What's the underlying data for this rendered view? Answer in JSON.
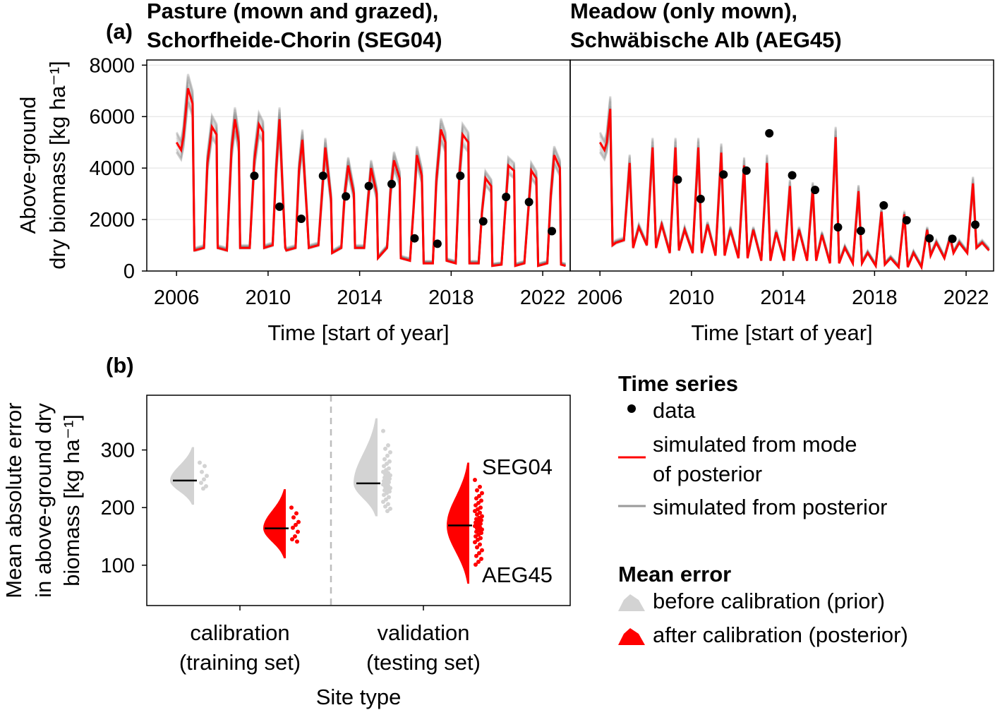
{
  "chart_data": [
    {
      "type": "line",
      "panel_label": "(a)",
      "title_line1": "Pasture (mown and grazed),",
      "title_line2": "Schorfheide-Chorin (SEG04)",
      "xlabel": "Time [start of year]",
      "ylabel_line1": "Above-ground",
      "ylabel_line2": "dry biomass [kg ha⁻¹]",
      "xlim": [
        2004.7,
        2023.2
      ],
      "ylim": [
        0,
        8200
      ],
      "xticks": [
        2006,
        2010,
        2014,
        2018,
        2022
      ],
      "yticks": [
        0,
        2000,
        4000,
        6000,
        8000
      ],
      "grid": true,
      "series": [
        {
          "name": "data",
          "type": "scatter",
          "x": [
            2009.4,
            2010.5,
            2011.45,
            2012.4,
            2013.4,
            2014.4,
            2015.4,
            2016.4,
            2017.4,
            2018.4,
            2019.4,
            2020.4,
            2021.4,
            2022.4
          ],
          "y": [
            3700,
            2500,
            2030,
            3700,
            2900,
            3300,
            3380,
            1270,
            1060,
            3700,
            1930,
            2880,
            2680,
            1550
          ]
        },
        {
          "name": "simulated from mode of posterior",
          "type": "line",
          "x": [
            2006.0,
            2006.2,
            2006.3,
            2006.5,
            2006.7,
            2006.78,
            2006.8,
            2007.2,
            2007.35,
            2007.55,
            2007.75,
            2007.8,
            2008.2,
            2008.4,
            2008.55,
            2008.72,
            2008.78,
            2009.2,
            2009.4,
            2009.6,
            2009.78,
            2009.83,
            2010.2,
            2010.35,
            2010.5,
            2010.75,
            2010.8,
            2011.2,
            2011.35,
            2011.5,
            2011.7,
            2011.78,
            2012.2,
            2012.38,
            2012.5,
            2012.75,
            2012.8,
            2013.2,
            2013.35,
            2013.5,
            2013.75,
            2013.8,
            2014.2,
            2014.35,
            2014.5,
            2014.75,
            2014.8,
            2015.2,
            2015.35,
            2015.5,
            2015.75,
            2015.8,
            2016.2,
            2016.35,
            2016.5,
            2016.72,
            2016.8,
            2017.2,
            2017.35,
            2017.55,
            2017.75,
            2017.8,
            2018.2,
            2018.35,
            2018.5,
            2018.75,
            2018.8,
            2019.2,
            2019.35,
            2019.5,
            2019.75,
            2019.8,
            2020.2,
            2020.35,
            2020.5,
            2020.75,
            2020.8,
            2021.2,
            2021.35,
            2021.5,
            2021.72,
            2021.8,
            2022.2,
            2022.35,
            2022.5,
            2022.75,
            2022.8,
            2023.0
          ],
          "y": [
            5000,
            4700,
            5200,
            7100,
            6500,
            800,
            800,
            900,
            4200,
            5600,
            5300,
            900,
            800,
            4700,
            5900,
            5000,
            900,
            900,
            4300,
            5700,
            5400,
            900,
            1000,
            3900,
            5900,
            900,
            800,
            900,
            3900,
            5100,
            2200,
            900,
            1000,
            3300,
            4800,
            2800,
            700,
            900,
            3000,
            4100,
            3000,
            900,
            900,
            2600,
            4000,
            3000,
            500,
            900,
            3100,
            4300,
            3600,
            500,
            400,
            2300,
            4500,
            3700,
            300,
            300,
            3500,
            5500,
            5000,
            400,
            300,
            3600,
            5300,
            5000,
            300,
            300,
            2300,
            3600,
            3300,
            200,
            250,
            2200,
            4100,
            3900,
            200,
            300,
            2100,
            3900,
            3600,
            200,
            300,
            2900,
            4500,
            4000,
            250,
            200
          ]
        },
        {
          "name": "simulated from posterior",
          "type": "line_ensemble"
        }
      ]
    },
    {
      "type": "line",
      "title_line1": "Meadow (only mown),",
      "title_line2": "Schwäbische Alb (AEG45)",
      "xlabel": "Time [start of year]",
      "xlim": [
        2004.7,
        2023.2
      ],
      "ylim": [
        0,
        8200
      ],
      "xticks": [
        2006,
        2010,
        2014,
        2018,
        2022
      ],
      "grid": true,
      "series": [
        {
          "name": "data",
          "type": "scatter",
          "x": [
            2009.4,
            2010.4,
            2011.4,
            2012.4,
            2013.4,
            2014.4,
            2015.4,
            2016.4,
            2017.4,
            2018.4,
            2019.4,
            2020.4,
            2021.4,
            2022.4
          ],
          "y": [
            3550,
            2800,
            3750,
            3900,
            5350,
            3720,
            3150,
            1700,
            1560,
            2550,
            1970,
            1270,
            1250,
            1800
          ]
        },
        {
          "name": "simulated from mode of posterior",
          "type": "line",
          "x": [
            2006.0,
            2006.2,
            2006.3,
            2006.45,
            2006.55,
            2006.7,
            2007.05,
            2007.3,
            2007.45,
            2007.7,
            2008.05,
            2008.3,
            2008.45,
            2008.7,
            2009.05,
            2009.3,
            2009.45,
            2009.7,
            2010.05,
            2010.3,
            2010.45,
            2010.7,
            2011.05,
            2011.3,
            2011.45,
            2011.7,
            2012.05,
            2012.3,
            2012.45,
            2012.7,
            2013.05,
            2013.3,
            2013.45,
            2013.7,
            2014.05,
            2014.3,
            2014.45,
            2014.7,
            2015.05,
            2015.3,
            2015.45,
            2015.7,
            2016.05,
            2016.3,
            2016.45,
            2016.7,
            2017.05,
            2017.3,
            2017.45,
            2017.7,
            2018.05,
            2018.3,
            2018.45,
            2018.7,
            2019.05,
            2019.3,
            2019.45,
            2019.7,
            2020.05,
            2020.3,
            2020.45,
            2020.7,
            2021.05,
            2021.3,
            2021.45,
            2021.7,
            2022.05,
            2022.3,
            2022.45,
            2022.7,
            2023.0
          ],
          "y": [
            5000,
            4700,
            5000,
            6300,
            1000,
            1100,
            1200,
            4200,
            900,
            1700,
            1000,
            4800,
            900,
            1800,
            700,
            4800,
            800,
            1600,
            700,
            4800,
            700,
            1800,
            600,
            4600,
            600,
            1600,
            500,
            4100,
            500,
            1600,
            400,
            4200,
            400,
            1500,
            400,
            3300,
            400,
            1600,
            400,
            3200,
            400,
            1400,
            300,
            5200,
            300,
            900,
            300,
            3100,
            300,
            700,
            200,
            2300,
            250,
            500,
            150,
            2200,
            150,
            700,
            150,
            1600,
            600,
            1100,
            500,
            1300,
            700,
            1100,
            700,
            3400,
            900,
            1100,
            800
          ]
        },
        {
          "name": "simulated from posterior",
          "type": "line_ensemble"
        }
      ]
    },
    {
      "type": "half-violin",
      "panel_label": "(b)",
      "xlabel": "Site type",
      "ylabel_line1": "Mean absolute error",
      "ylabel_line2": "in above-ground dry",
      "ylabel_line3": "biomass [kg ha⁻¹]",
      "ylim": [
        30,
        395
      ],
      "yticks": [
        100,
        200,
        300
      ],
      "categories": [
        {
          "line1": "calibration",
          "line2": "(training set)"
        },
        {
          "line1": "validation",
          "line2": "(testing set)"
        }
      ],
      "annotations": [
        "SEG04",
        "AEG45"
      ],
      "groups": [
        {
          "category": 0,
          "series": "prior",
          "median": 247,
          "range": [
            205,
            305
          ],
          "points": [
            278,
            272,
            262,
            255,
            249,
            243,
            237,
            233
          ]
        },
        {
          "category": 0,
          "series": "posterior",
          "median": 164,
          "range": [
            112,
            232
          ],
          "points": [
            200,
            190,
            183,
            175,
            170,
            165,
            158,
            150,
            145,
            141
          ]
        },
        {
          "category": 1,
          "series": "prior",
          "median": 242,
          "range": [
            185,
            355
          ],
          "points": [
            333,
            308,
            302,
            296,
            290,
            284,
            280,
            276,
            272,
            268,
            265,
            262,
            260,
            258,
            256,
            254,
            252,
            250,
            248,
            246,
            244,
            242,
            240,
            238,
            236,
            234,
            232,
            230,
            228,
            225,
            222,
            218,
            214,
            210,
            206,
            202,
            198,
            194
          ]
        },
        {
          "category": 1,
          "series": "posterior",
          "median": 169,
          "range": [
            68,
            278
          ],
          "points": [
            248,
            236,
            230,
            225,
            220,
            216,
            212,
            208,
            204,
            200,
            197,
            194,
            191,
            188,
            185,
            182,
            180,
            178,
            176,
            174,
            172,
            170,
            168,
            166,
            164,
            162,
            160,
            158,
            156,
            153,
            150,
            147,
            144,
            140,
            136,
            131,
            126,
            121,
            116,
            111,
            106,
            101
          ]
        }
      ]
    }
  ],
  "legend": {
    "time_series_title": "Time series",
    "data_label": "data",
    "mode_label_line1": "simulated from mode",
    "mode_label_line2": "of posterior",
    "posterior_label": "simulated from posterior",
    "mean_error_title": "Mean error",
    "prior_label": "before calibration (prior)",
    "posterior_fill_label": "after calibration (posterior)"
  },
  "colors": {
    "mode": "#ff0000",
    "ensemble": "#555555",
    "prior_fill": "#d3d3d3",
    "posterior_fill": "#ff0000",
    "data_points": "#000000",
    "grid": "#e5e5e5"
  }
}
